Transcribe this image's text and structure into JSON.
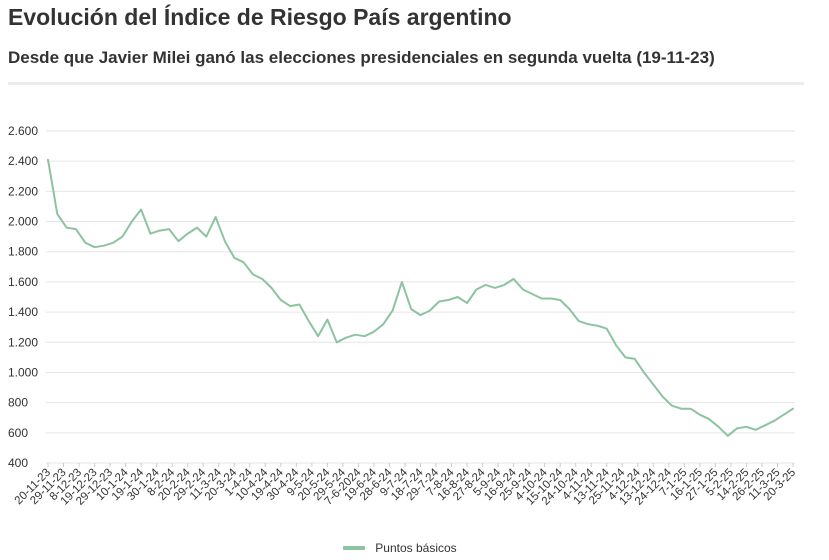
{
  "header": {
    "title": "Evolución del Índice de Riesgo País argentino",
    "subtitle": "Desde que Javier Milei ganó las elecciones presidenciales en segunda vuelta (19-11-23)"
  },
  "colors": {
    "line": "#8dc3a0",
    "grid": "#e6e6e6",
    "text": "#333333"
  },
  "chart_data": {
    "type": "line",
    "xlabel": "",
    "ylabel": "",
    "ylim": [
      400,
      2600
    ],
    "grid": true,
    "legend_position": "bottom",
    "y_ticks": [
      "400",
      "600",
      "800",
      "1.000",
      "1.200",
      "1.400",
      "1.600",
      "1.800",
      "2.000",
      "2.200",
      "2.400",
      "2.600"
    ],
    "y_tick_values": [
      400,
      600,
      800,
      1000,
      1200,
      1400,
      1600,
      1800,
      2000,
      2200,
      2400,
      2600
    ],
    "x_tick_labels": [
      "20-11-23",
      "29-11-23",
      "8-12-23",
      "19-12-23",
      "29-12-23",
      "10-1-24",
      "19-1-24",
      "30-1-24",
      "8-2-24",
      "20-2-24",
      "29-2-24",
      "11-3-24",
      "20-3-24",
      "1-4-24",
      "10-4-24",
      "19-4-24",
      "30-4-24",
      "9-5-24",
      "20-5-24",
      "29-5-24",
      "7-6-2024",
      "19-6-24",
      "28-6-24",
      "9-7-24",
      "18-7-24",
      "29-7-24",
      "7-8-24",
      "16-8-24",
      "27-8-24",
      "5-9-24",
      "16-9-24",
      "25-9-24",
      "4-10-24",
      "15-10-24",
      "24-10-24",
      "4-11-24",
      "13-11-24",
      "25-11-24",
      "4-12-24",
      "13-12-24",
      "24-12-24",
      "7-1-25",
      "16-1-25",
      "27-1-25",
      "5-2-25",
      "14-2-25",
      "26-2-25",
      "11-3-25",
      "20-3-25"
    ],
    "series": [
      {
        "name": "Puntos básicos",
        "x": [
          0,
          0.6,
          1.2,
          1.8,
          2.4,
          3,
          3.6,
          4.2,
          4.8,
          5.4,
          6,
          6.6,
          7.2,
          7.8,
          8.4,
          9,
          9.6,
          10.2,
          10.8,
          11.4,
          12,
          12.6,
          13.2,
          13.8,
          14.4,
          15,
          15.6,
          16.2,
          16.8,
          17.4,
          18,
          18.6,
          19.2,
          19.8,
          20.4,
          21,
          21.6,
          22.2,
          22.8,
          23.4,
          24,
          24.6,
          25.2,
          25.8,
          26.4,
          27,
          27.6,
          28.2,
          28.8,
          29.4,
          30,
          30.6,
          31.2,
          31.8,
          32.4,
          33,
          33.6,
          34.2,
          34.8,
          35.4,
          36,
          36.6,
          37.2,
          37.8,
          38.4,
          39,
          39.6,
          40.2,
          40.8,
          41.4,
          42,
          42.6,
          43.2,
          43.8,
          44.4,
          45,
          45.6,
          46.2,
          46.8,
          47.4,
          48
        ],
        "values": [
          2410,
          2050,
          1960,
          1950,
          1860,
          1830,
          1840,
          1860,
          1900,
          2000,
          2080,
          1920,
          1940,
          1950,
          1870,
          1920,
          1960,
          1900,
          2030,
          1870,
          1760,
          1730,
          1650,
          1620,
          1560,
          1480,
          1440,
          1450,
          1340,
          1240,
          1350,
          1200,
          1230,
          1250,
          1240,
          1270,
          1320,
          1410,
          1600,
          1420,
          1380,
          1410,
          1470,
          1480,
          1500,
          1460,
          1550,
          1580,
          1560,
          1580,
          1620,
          1550,
          1520,
          1490,
          1490,
          1480,
          1420,
          1340,
          1320,
          1310,
          1290,
          1180,
          1100,
          1090,
          1000,
          920,
          840,
          780,
          760,
          760,
          720,
          690,
          640,
          580,
          630,
          640,
          620,
          650,
          680,
          720,
          760
        ]
      }
    ]
  },
  "legend": {
    "label": "Puntos básicos"
  }
}
